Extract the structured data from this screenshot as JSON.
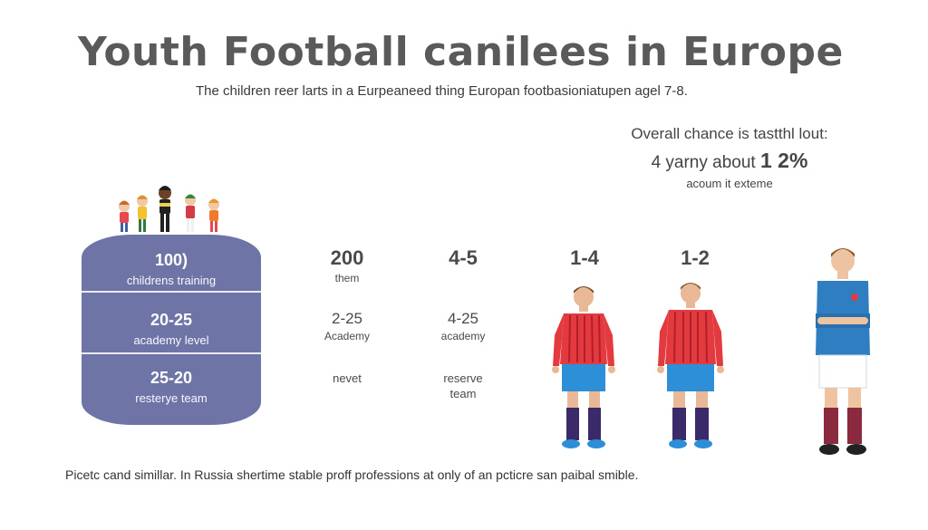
{
  "title": "Youth Football canilees in Europe",
  "subtitle": "The children reer larts in a Eurpeaneed thing Europan footbasioniatupen agel 7-8.",
  "overall": {
    "line1": "Overall chance is tastthl lout:",
    "line2_prefix": "4 yarny about ",
    "line2_value": "1 2%",
    "line3": "acoum it exteme"
  },
  "barrel": {
    "segments": [
      {
        "number": "100)",
        "label": "childrens training"
      },
      {
        "number": "20-25",
        "label": "academy level"
      },
      {
        "number": "25-20",
        "label": "resterye team"
      }
    ],
    "color": "#6e74a5"
  },
  "columns": [
    {
      "head": "200",
      "sub": "them",
      "mid": "2-25",
      "mid_sub": "Academy",
      "low": "nevet",
      "low_sub": ""
    },
    {
      "head": "4-5",
      "sub": "",
      "mid": "4-25",
      "mid_sub": "academy",
      "low": "reserve",
      "low_sub": "team"
    },
    {
      "head": "1-4"
    },
    {
      "head": "1-2"
    }
  ],
  "players": {
    "red_kit": "#e33a3f",
    "shorts": "#2d8fd8",
    "socks": "#3a2a6a",
    "blue_kit": "#2f7ec2",
    "maroon_socks": "#8b2a3f"
  },
  "footer": "Picetc cand simillar. In Russia shertime stable proff professions at only of an pcticre san paibal smible."
}
